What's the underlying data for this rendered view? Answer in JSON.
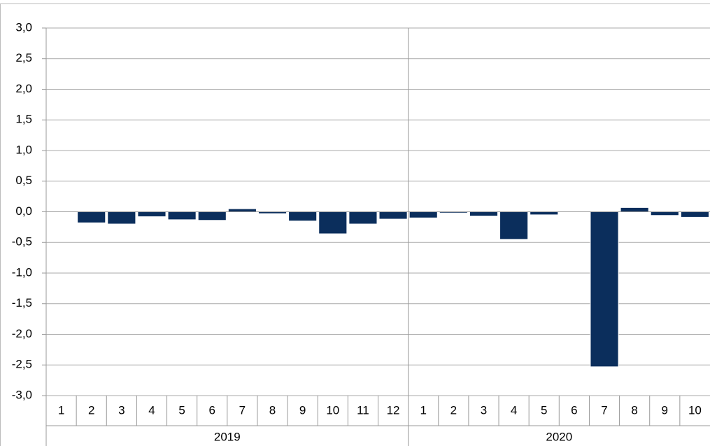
{
  "chart_data": {
    "type": "bar",
    "color": "#0b2e5c",
    "grid": true,
    "ylim": [
      -3,
      3
    ],
    "yticks": [
      {
        "value": -3,
        "label": "-3,0"
      },
      {
        "value": -2.5,
        "label": "-2,5"
      },
      {
        "value": -2,
        "label": "-2,0"
      },
      {
        "value": -1.5,
        "label": "-1,5"
      },
      {
        "value": -1,
        "label": "-1,0"
      },
      {
        "value": -0.5,
        "label": "-0,5"
      },
      {
        "value": 0,
        "label": "0,0"
      },
      {
        "value": 0.5,
        "label": "0,5"
      },
      {
        "value": 1,
        "label": "1,0"
      },
      {
        "value": 1.5,
        "label": "1,5"
      },
      {
        "value": 2,
        "label": "2,0"
      },
      {
        "value": 2.5,
        "label": "2,5"
      },
      {
        "value": 3,
        "label": "3,0"
      }
    ],
    "groups": [
      {
        "name": "2019",
        "categories": [
          "1",
          "2",
          "3",
          "4",
          "5",
          "6",
          "7",
          "8",
          "9",
          "10",
          "11",
          "12"
        ],
        "values": [
          0,
          -0.18,
          -0.2,
          -0.08,
          -0.13,
          -0.14,
          0.05,
          -0.03,
          -0.15,
          -0.36,
          -0.2,
          -0.12
        ]
      },
      {
        "name": "2020",
        "categories": [
          "1",
          "2",
          "3",
          "4",
          "5",
          "6",
          "7",
          "8",
          "9",
          "10"
        ],
        "values": [
          -0.1,
          -0.02,
          -0.07,
          -0.45,
          -0.05,
          -0.01,
          -2.53,
          0.07,
          -0.06,
          -0.09
        ]
      }
    ]
  }
}
